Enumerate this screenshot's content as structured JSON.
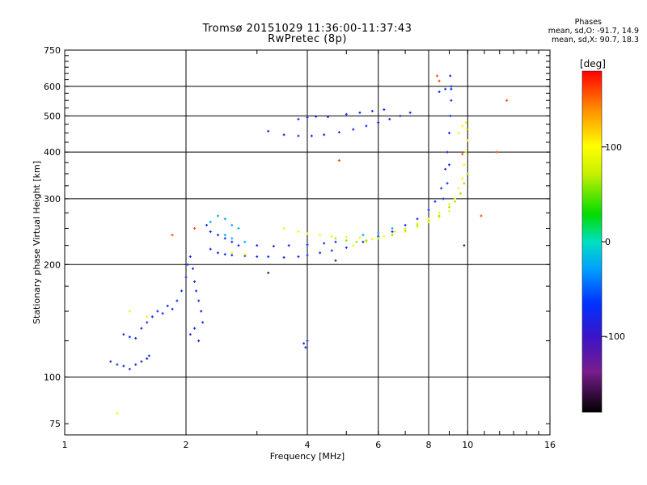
{
  "header": {
    "title_line1": "Tromsø 20151029 11:36:00-11:37:43",
    "title_line2": "RwPretec (8p)",
    "stats_title": "Phases",
    "stats_o": "mean, sd,O: -91.7, 14.9",
    "stats_x": "mean, sd,X: 90.7, 18.3"
  },
  "chart_data": {
    "type": "scatter",
    "xlabel": "Frequency [MHz]",
    "ylabel": "Stationary phase Virtual Height [km]",
    "xscale": "log",
    "yscale": "log",
    "xlim": [
      1,
      16
    ],
    "ylim": [
      70,
      750
    ],
    "xticks": [
      1,
      2,
      4,
      6,
      8,
      10,
      16
    ],
    "yticks": [
      75,
      100,
      200,
      300,
      400,
      500,
      600,
      750
    ],
    "grid": true,
    "colorbar": {
      "label": "[deg]",
      "range": [
        -180,
        180
      ],
      "ticks": [
        100,
        0,
        -100
      ]
    },
    "series": [
      {
        "phase": -95,
        "points": [
          [
            1.3,
            110
          ],
          [
            1.35,
            108
          ],
          [
            1.4,
            107
          ],
          [
            1.45,
            105
          ],
          [
            1.5,
            108
          ],
          [
            1.55,
            110
          ],
          [
            1.6,
            112
          ],
          [
            1.62,
            114
          ],
          [
            1.4,
            130
          ],
          [
            1.45,
            128
          ],
          [
            1.5,
            127
          ],
          [
            1.55,
            135
          ],
          [
            1.6,
            140
          ],
          [
            1.65,
            145
          ],
          [
            1.7,
            150
          ],
          [
            1.75,
            148
          ],
          [
            1.8,
            155
          ],
          [
            1.85,
            152
          ],
          [
            1.9,
            160
          ],
          [
            1.95,
            170
          ],
          [
            2.0,
            185
          ],
          [
            2.02,
            200
          ],
          [
            2.05,
            210
          ],
          [
            2.08,
            195
          ],
          [
            2.1,
            180
          ],
          [
            2.12,
            170
          ],
          [
            2.15,
            160
          ],
          [
            2.18,
            150
          ],
          [
            2.2,
            140
          ],
          [
            2.05,
            130
          ],
          [
            2.1,
            135
          ],
          [
            2.15,
            125
          ],
          [
            2.25,
            255
          ],
          [
            2.3,
            245
          ],
          [
            2.4,
            240
          ],
          [
            2.5,
            235
          ],
          [
            2.6,
            230
          ],
          [
            2.7,
            225
          ],
          [
            2.3,
            220
          ],
          [
            2.4,
            215
          ],
          [
            2.5,
            213
          ],
          [
            2.6,
            212
          ],
          [
            2.8,
            211
          ],
          [
            3.0,
            210
          ],
          [
            3.2,
            210
          ],
          [
            3.5,
            209
          ],
          [
            3.8,
            210
          ],
          [
            4.0,
            212
          ],
          [
            4.3,
            215
          ],
          [
            4.6,
            218
          ],
          [
            5.0,
            222
          ],
          [
            5.5,
            230
          ],
          [
            6.0,
            238
          ],
          [
            6.5,
            245
          ],
          [
            7.0,
            255
          ],
          [
            7.5,
            265
          ],
          [
            8.0,
            280
          ],
          [
            8.3,
            295
          ],
          [
            8.6,
            320
          ],
          [
            8.8,
            360
          ],
          [
            8.9,
            400
          ],
          [
            9.0,
            450
          ],
          [
            9.05,
            500
          ],
          [
            9.1,
            550
          ],
          [
            9.1,
            600
          ],
          [
            9.05,
            640
          ],
          [
            3.0,
            225
          ],
          [
            3.3,
            224
          ],
          [
            3.6,
            225
          ],
          [
            4.0,
            226
          ],
          [
            4.4,
            228
          ],
          [
            4.7,
            230
          ],
          [
            3.2,
            455
          ],
          [
            3.5,
            445
          ],
          [
            3.8,
            442
          ],
          [
            4.1,
            442
          ],
          [
            4.4,
            445
          ],
          [
            4.8,
            452
          ],
          [
            5.2,
            460
          ],
          [
            5.6,
            470
          ],
          [
            6.0,
            480
          ],
          [
            6.4,
            490
          ],
          [
            6.8,
            500
          ],
          [
            7.2,
            510
          ],
          [
            3.8,
            490
          ],
          [
            4.0,
            495
          ],
          [
            4.2,
            498
          ],
          [
            4.5,
            497
          ],
          [
            5.0,
            505
          ],
          [
            5.4,
            510
          ],
          [
            5.8,
            515
          ],
          [
            6.2,
            520
          ],
          [
            3.92,
            123
          ],
          [
            4.0,
            125
          ],
          [
            3.96,
            120
          ],
          [
            8.5,
            580
          ],
          [
            8.8,
            590
          ],
          [
            9.1,
            590
          ],
          [
            8.7,
            300
          ],
          [
            8.9,
            330
          ],
          [
            9.0,
            370
          ]
        ]
      },
      {
        "phase": 105,
        "points": [
          [
            3.5,
            250
          ],
          [
            3.8,
            245
          ],
          [
            4.0,
            242
          ],
          [
            4.3,
            240
          ],
          [
            4.6,
            238
          ],
          [
            5.0,
            237
          ],
          [
            5.4,
            236
          ],
          [
            5.8,
            234
          ],
          [
            6.2,
            238
          ],
          [
            6.6,
            245
          ],
          [
            7.0,
            250
          ],
          [
            7.5,
            258
          ],
          [
            8.0,
            265
          ],
          [
            8.5,
            275
          ],
          [
            9.0,
            290
          ],
          [
            9.3,
            300
          ],
          [
            9.5,
            320
          ],
          [
            9.7,
            340
          ],
          [
            9.8,
            370
          ],
          [
            9.9,
            400
          ],
          [
            10.0,
            430
          ],
          [
            9.95,
            460
          ],
          [
            9.9,
            480
          ],
          [
            5.2,
            225
          ],
          [
            5.6,
            230
          ],
          [
            6.0,
            235
          ],
          [
            6.5,
            240
          ],
          [
            7.0,
            245
          ],
          [
            7.5,
            252
          ],
          [
            8.0,
            260
          ],
          [
            8.5,
            268
          ],
          [
            9.0,
            278
          ],
          [
            2.6,
            215
          ],
          [
            2.8,
            213
          ],
          [
            1.45,
            150
          ],
          [
            1.6,
            145
          ],
          [
            1.35,
            80
          ],
          [
            9.5,
            450
          ],
          [
            9.7,
            470
          ]
        ]
      },
      {
        "phase": 60,
        "points": [
          [
            4.7,
            235
          ],
          [
            5.0,
            232
          ],
          [
            5.3,
            230
          ],
          [
            5.6,
            232
          ],
          [
            6.0,
            236
          ],
          [
            6.5,
            240
          ],
          [
            7.0,
            247
          ],
          [
            7.5,
            255
          ],
          [
            8.0,
            262
          ],
          [
            8.5,
            270
          ],
          [
            9.0,
            285
          ],
          [
            9.3,
            295
          ],
          [
            9.6,
            310
          ],
          [
            9.8,
            330
          ],
          [
            10.0,
            350
          ]
        ]
      },
      {
        "phase": -45,
        "points": [
          [
            2.3,
            260
          ],
          [
            2.4,
            270
          ],
          [
            2.5,
            265
          ],
          [
            2.6,
            255
          ],
          [
            2.7,
            250
          ],
          [
            2.5,
            240
          ],
          [
            2.6,
            235
          ],
          [
            2.8,
            230
          ],
          [
            5.5,
            240
          ],
          [
            6.0,
            243
          ],
          [
            6.5,
            250
          ]
        ]
      },
      {
        "phase": 160,
        "points": [
          [
            1.85,
            240
          ],
          [
            2.1,
            250
          ],
          [
            4.8,
            380
          ],
          [
            8.4,
            640
          ],
          [
            8.5,
            620
          ],
          [
            11.8,
            400
          ],
          [
            12.5,
            550
          ],
          [
            10.8,
            270
          ],
          [
            9.7,
            395
          ]
        ]
      },
      {
        "phase": -150,
        "points": [
          [
            3.2,
            190
          ],
          [
            4.7,
            205
          ],
          [
            9.8,
            225
          ]
        ]
      }
    ]
  }
}
